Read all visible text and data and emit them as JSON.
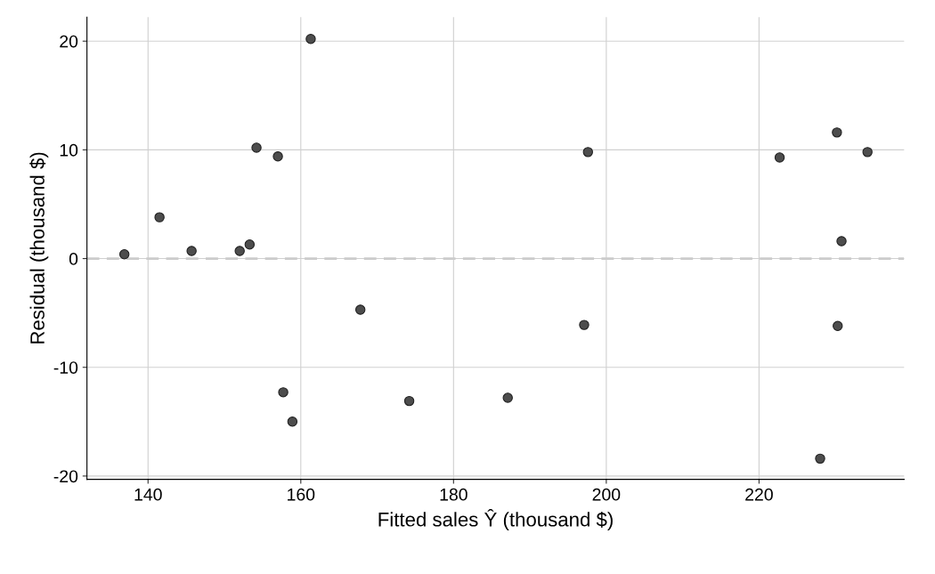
{
  "chart_data": {
    "type": "scatter",
    "xlabel": "Fitted sales Ŷ (thousand $)",
    "ylabel": "Residual (thousand $)",
    "x": [
      136.9,
      141.5,
      145.7,
      152.0,
      153.3,
      154.2,
      157.0,
      157.7,
      158.9,
      161.3,
      167.8,
      174.2,
      187.1,
      197.1,
      197.6,
      222.7,
      228.0,
      230.2,
      230.8,
      230.3,
      234.2
    ],
    "values": [
      0.4,
      3.8,
      0.7,
      0.7,
      1.3,
      10.2,
      9.4,
      -12.3,
      -15.0,
      20.2,
      -4.7,
      -13.1,
      -12.8,
      -6.1,
      9.8,
      9.3,
      -18.4,
      11.6,
      1.6,
      -6.2,
      9.8
    ],
    "color": "#4d4d4d",
    "marker": "circle",
    "xlim": [
      132,
      239
    ],
    "ylim": [
      -20.3,
      22.2
    ],
    "xticks": [
      140,
      160,
      180,
      200,
      220
    ],
    "yticks": [
      -20,
      -10,
      0,
      10,
      20
    ],
    "grid": true,
    "ref_lines": [
      {
        "axis": "y",
        "value": 0,
        "color": "#cccccc",
        "line_style": "dashed"
      }
    ]
  }
}
